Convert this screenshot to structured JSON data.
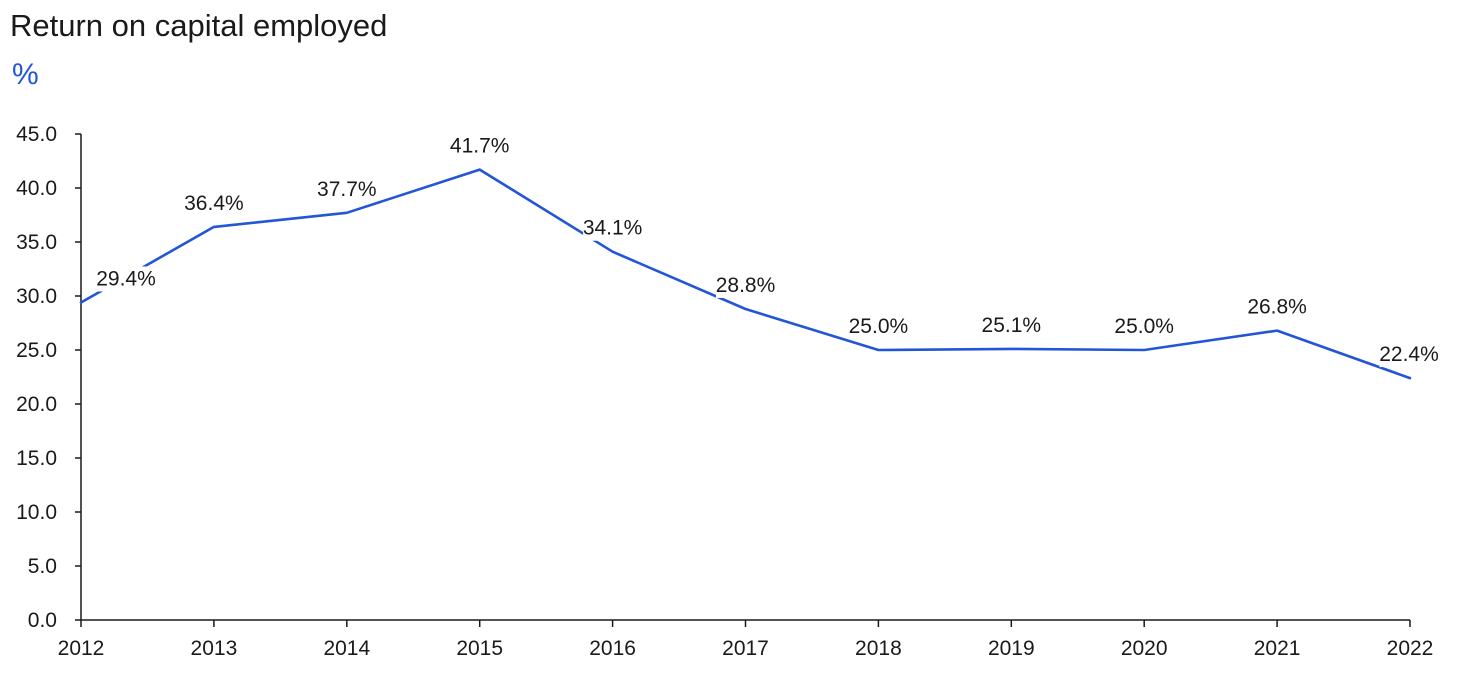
{
  "chart_data": {
    "type": "line",
    "title": "Return on capital employed",
    "unit_label": "%",
    "x": [
      "2012",
      "2013",
      "2014",
      "2015",
      "2016",
      "2017",
      "2018",
      "2019",
      "2020",
      "2021",
      "2022"
    ],
    "series": [
      {
        "values": [
          29.4,
          36.4,
          37.7,
          41.7,
          34.1,
          28.8,
          25.0,
          25.1,
          25.0,
          26.8,
          22.4
        ],
        "data_labels": [
          "29.4%",
          "36.4%",
          "37.7%",
          "41.7%",
          "34.1%",
          "28.8%",
          "25.0%",
          "25.1%",
          "25.0%",
          "26.8%",
          "22.4%"
        ],
        "color": "#2356d6"
      }
    ],
    "y_ticks": [
      "0.0",
      "5.0",
      "10.0",
      "15.0",
      "20.0",
      "25.0",
      "30.0",
      "35.0",
      "40.0",
      "45.0"
    ],
    "ylim": [
      0,
      45
    ],
    "grid": false,
    "legend": "none"
  },
  "colors": {
    "accent": "#2356d6",
    "text": "#1a1a1a",
    "axis": "#1a1a1a"
  }
}
